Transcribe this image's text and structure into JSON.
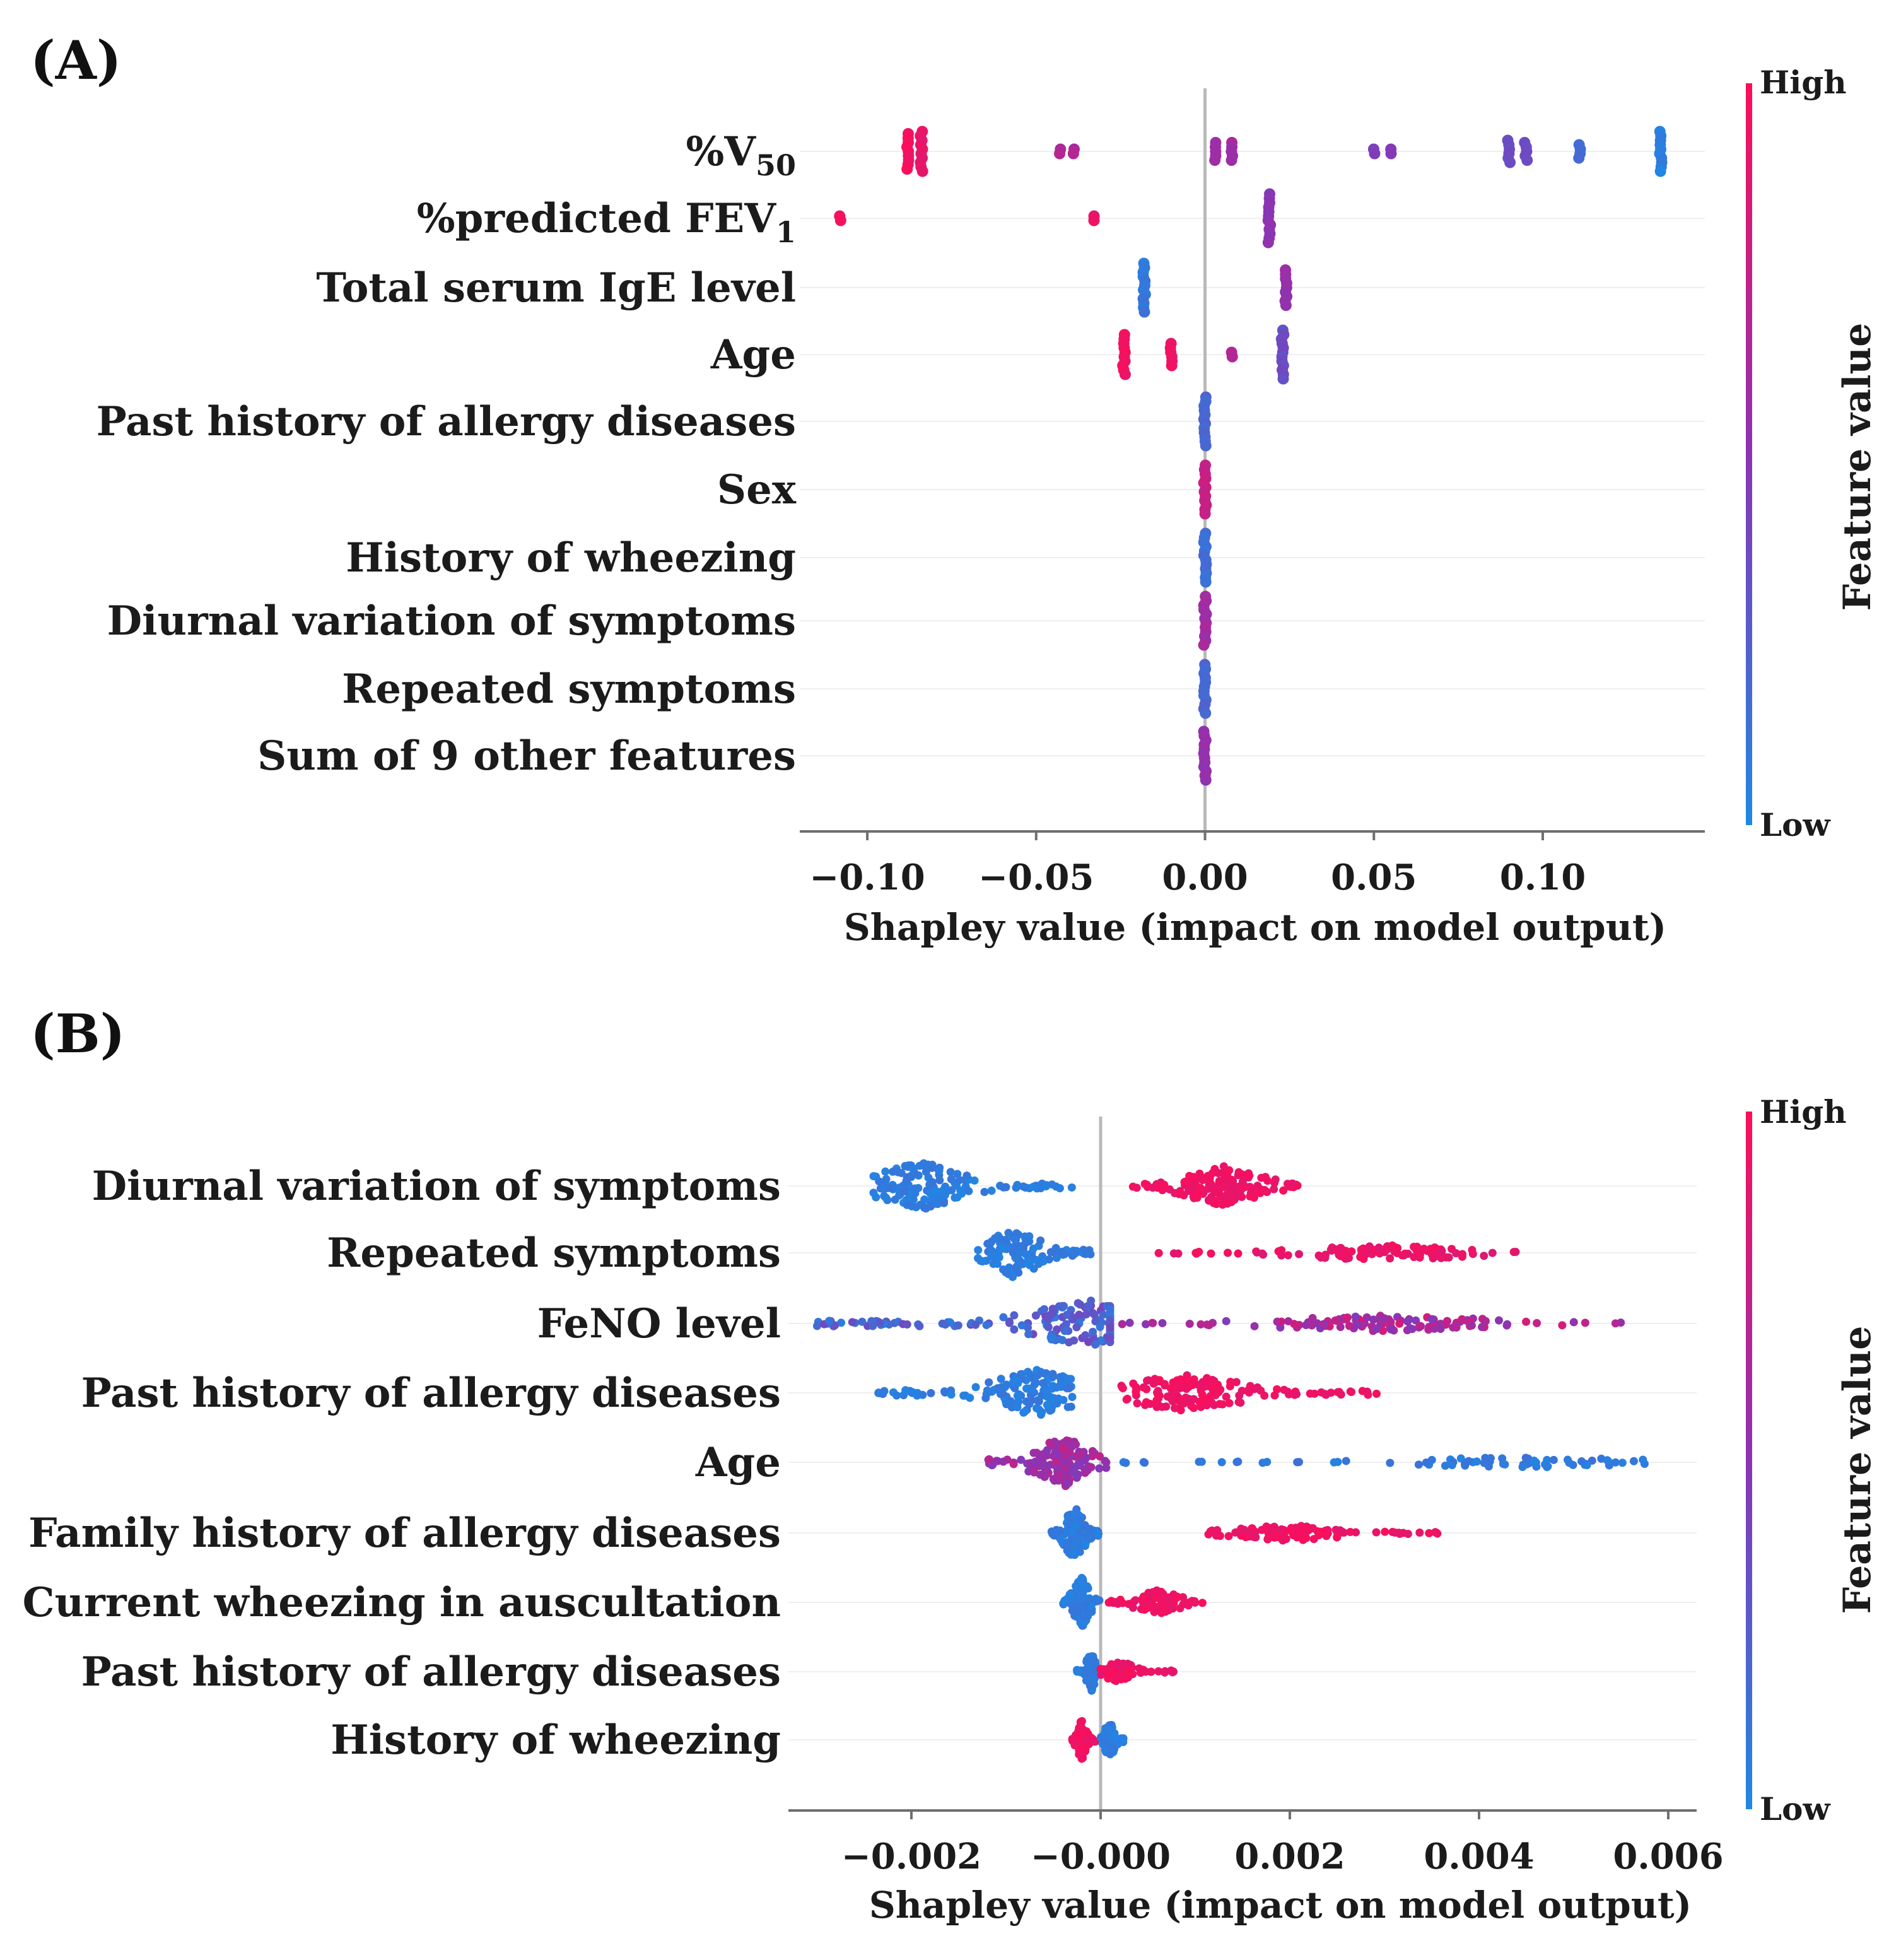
{
  "colors": {
    "high": "#ff0d57",
    "mid": "#8b34b4",
    "low": "#1e88e5",
    "zero_line": "#b9b9b9",
    "axis": "#6f6f6f",
    "grid": "#eeeeee"
  },
  "chart_data": [
    {
      "panel": "(A)",
      "type": "scatter",
      "subtype": "shap-beeswarm",
      "xlabel": "Shapley value (impact on model output)",
      "colorbar": {
        "title": "Feature value",
        "high_label": "High",
        "low_label": "Low"
      },
      "xlim": [
        -0.12,
        0.148
      ],
      "ticks": [
        {
          "value": -0.1,
          "label": "−0.10"
        },
        {
          "value": -0.05,
          "label": "−0.05"
        },
        {
          "value": 0.0,
          "label": "0.00"
        },
        {
          "value": 0.05,
          "label": "0.05"
        },
        {
          "value": 0.1,
          "label": "0.10"
        }
      ],
      "features": [
        {
          "name": "%V",
          "sub": "50",
          "points": [
            {
              "x": -0.088,
              "c": 0.95,
              "n": 9
            },
            {
              "x": -0.084,
              "c": 0.9,
              "n": 10
            },
            {
              "x": -0.043,
              "c": 0.65,
              "n": 2
            },
            {
              "x": -0.039,
              "c": 0.65,
              "n": 2
            },
            {
              "x": 0.003,
              "c": 0.6,
              "n": 5
            },
            {
              "x": 0.008,
              "c": 0.6,
              "n": 5
            },
            {
              "x": 0.05,
              "c": 0.45,
              "n": 2
            },
            {
              "x": 0.055,
              "c": 0.45,
              "n": 2
            },
            {
              "x": 0.09,
              "c": 0.35,
              "n": 6
            },
            {
              "x": 0.095,
              "c": 0.35,
              "n": 5
            },
            {
              "x": 0.111,
              "c": 0.15,
              "n": 4
            },
            {
              "x": 0.135,
              "c": 0.05,
              "n": 10
            }
          ]
        },
        {
          "name": "%predicted  FEV",
          "sub": "1",
          "points": [
            {
              "x": -0.108,
              "c": 0.95,
              "n": 2
            },
            {
              "x": -0.033,
              "c": 0.9,
              "n": 2
            },
            {
              "x": 0.019,
              "c": 0.5,
              "n": 12
            }
          ]
        },
        {
          "name": "Total serum  IgE level",
          "sub": "",
          "points": [
            {
              "x": -0.018,
              "c": 0.1,
              "n": 12
            },
            {
              "x": 0.024,
              "c": 0.55,
              "n": 9
            }
          ]
        },
        {
          "name": "Age",
          "sub": "",
          "points": [
            {
              "x": -0.024,
              "c": 0.95,
              "n": 10
            },
            {
              "x": -0.01,
              "c": 0.9,
              "n": 6
            },
            {
              "x": 0.008,
              "c": 0.65,
              "n": 2
            },
            {
              "x": 0.023,
              "c": 0.35,
              "n": 12
            }
          ]
        },
        {
          "name": "Past history  of allergy  diseases",
          "sub": "",
          "points": [
            {
              "x": 0.0,
              "c": 0.2,
              "n": 12
            }
          ]
        },
        {
          "name": "Sex",
          "sub": "",
          "points": [
            {
              "x": 0.0,
              "c": 0.75,
              "n": 12
            }
          ]
        },
        {
          "name": "History  of wheezing",
          "sub": "",
          "points": [
            {
              "x": 0.0,
              "c": 0.15,
              "n": 12
            }
          ]
        },
        {
          "name": "Diurnal  variation  of symptoms",
          "sub": "",
          "points": [
            {
              "x": 0.0,
              "c": 0.6,
              "n": 12
            }
          ]
        },
        {
          "name": "Repeated symptoms",
          "sub": "",
          "points": [
            {
              "x": 0.0,
              "c": 0.2,
              "n": 12
            }
          ]
        },
        {
          "name": "Sum  of 9 other  features",
          "sub": "",
          "points": [
            {
              "x": 0.0,
              "c": 0.55,
              "n": 12
            }
          ]
        }
      ]
    },
    {
      "panel": "(B)",
      "type": "scatter",
      "subtype": "shap-beeswarm",
      "xlabel": "Shapley value (impact on model output)",
      "colorbar": {
        "title": "Feature value",
        "high_label": "High",
        "low_label": "Low"
      },
      "xlim": [
        -0.0033,
        0.0063
      ],
      "ticks": [
        {
          "value": -0.002,
          "label": "−0.002"
        },
        {
          "value": 0.0,
          "label": "−0.000"
        },
        {
          "value": 0.002,
          "label": "0.002"
        },
        {
          "value": 0.004,
          "label": "0.004"
        },
        {
          "value": 0.006,
          "label": "0.006"
        }
      ],
      "features": [
        {
          "name": "Diurnal  variation  of symptoms",
          "clusters": [
            {
              "lo": -0.0024,
              "hi": -0.0003,
              "peak": -0.0019,
              "n": 150,
              "c0": 0.02,
              "c1": 0.12,
              "h": 0.9
            },
            {
              "lo": 0.0003,
              "hi": 0.0021,
              "peak": 0.0013,
              "n": 150,
              "c0": 0.88,
              "c1": 0.98,
              "h": 0.75
            }
          ]
        },
        {
          "name": "Repeated symptoms",
          "clusters": [
            {
              "lo": -0.0013,
              "hi": -0.0001,
              "peak": -0.0009,
              "n": 120,
              "c0": 0.02,
              "c1": 0.12,
              "h": 0.95
            },
            {
              "lo": 0.0006,
              "hi": 0.0044,
              "peak": 0.003,
              "n": 110,
              "c0": 0.85,
              "c1": 0.97,
              "h": 0.3
            }
          ]
        },
        {
          "name": "FeNO level",
          "clusters": [
            {
              "lo": -0.003,
              "hi": 0.0001,
              "peak": -0.0001,
              "n": 170,
              "c0": 0.05,
              "c1": 0.4,
              "h": 0.85
            },
            {
              "lo": 0.0002,
              "hi": 0.0055,
              "peak": 0.003,
              "n": 120,
              "c0": 0.45,
              "c1": 0.85,
              "h": 0.3
            }
          ]
        },
        {
          "name": "Past history  of allergy  diseases",
          "clusters": [
            {
              "lo": -0.0024,
              "hi": -0.0003,
              "peak": -0.0007,
              "n": 140,
              "c0": 0.02,
              "c1": 0.12,
              "h": 0.9
            },
            {
              "lo": 0.0002,
              "hi": 0.003,
              "peak": 0.0009,
              "n": 150,
              "c0": 0.88,
              "c1": 0.98,
              "h": 0.7
            }
          ]
        },
        {
          "name": "Age",
          "clusters": [
            {
              "lo": -0.0012,
              "hi": 0.0001,
              "peak": -0.0004,
              "n": 150,
              "c0": 0.45,
              "c1": 0.75,
              "h": 0.95
            },
            {
              "lo": 0.0001,
              "hi": 0.0058,
              "peak": 0.0045,
              "n": 75,
              "c0": 0.02,
              "c1": 0.15,
              "h": 0.2
            }
          ]
        },
        {
          "name": "Family  history  of allergy  diseases",
          "clusters": [
            {
              "lo": -0.00052,
              "hi": -2e-05,
              "peak": -0.00028,
              "n": 150,
              "c0": 0.02,
              "c1": 0.12,
              "h": 1.0
            },
            {
              "lo": 0.0011,
              "hi": 0.0037,
              "peak": 0.002,
              "n": 100,
              "c0": 0.88,
              "c1": 0.98,
              "h": 0.3
            }
          ]
        },
        {
          "name": "Current  wheezing  in auscultation",
          "clusters": [
            {
              "lo": -0.0004,
              "hi": 0.0,
              "peak": -0.0002,
              "n": 100,
              "c0": 0.02,
              "c1": 0.12,
              "h": 0.95
            },
            {
              "lo": 0.0,
              "hi": 0.0011,
              "peak": 0.0006,
              "n": 90,
              "c0": 0.88,
              "c1": 0.98,
              "h": 0.45
            }
          ]
        },
        {
          "name": "Past history  of allergy  diseases",
          "clusters": [
            {
              "lo": -0.00025,
              "hi": 0.0,
              "peak": -0.0001,
              "n": 70,
              "c0": 0.02,
              "c1": 0.12,
              "h": 0.75
            },
            {
              "lo": 0.0,
              "hi": 0.0008,
              "peak": 0.0002,
              "n": 70,
              "c0": 0.88,
              "c1": 0.98,
              "h": 0.4
            }
          ]
        },
        {
          "name": "History  of wheezing",
          "clusters": [
            {
              "lo": -0.0003,
              "hi": -5e-05,
              "peak": -0.0002,
              "n": 80,
              "c0": 0.9,
              "c1": 0.99,
              "h": 0.75
            },
            {
              "lo": 0.0,
              "hi": 0.00025,
              "peak": 0.0001,
              "n": 80,
              "c0": 0.02,
              "c1": 0.12,
              "h": 0.75
            }
          ]
        }
      ]
    }
  ]
}
